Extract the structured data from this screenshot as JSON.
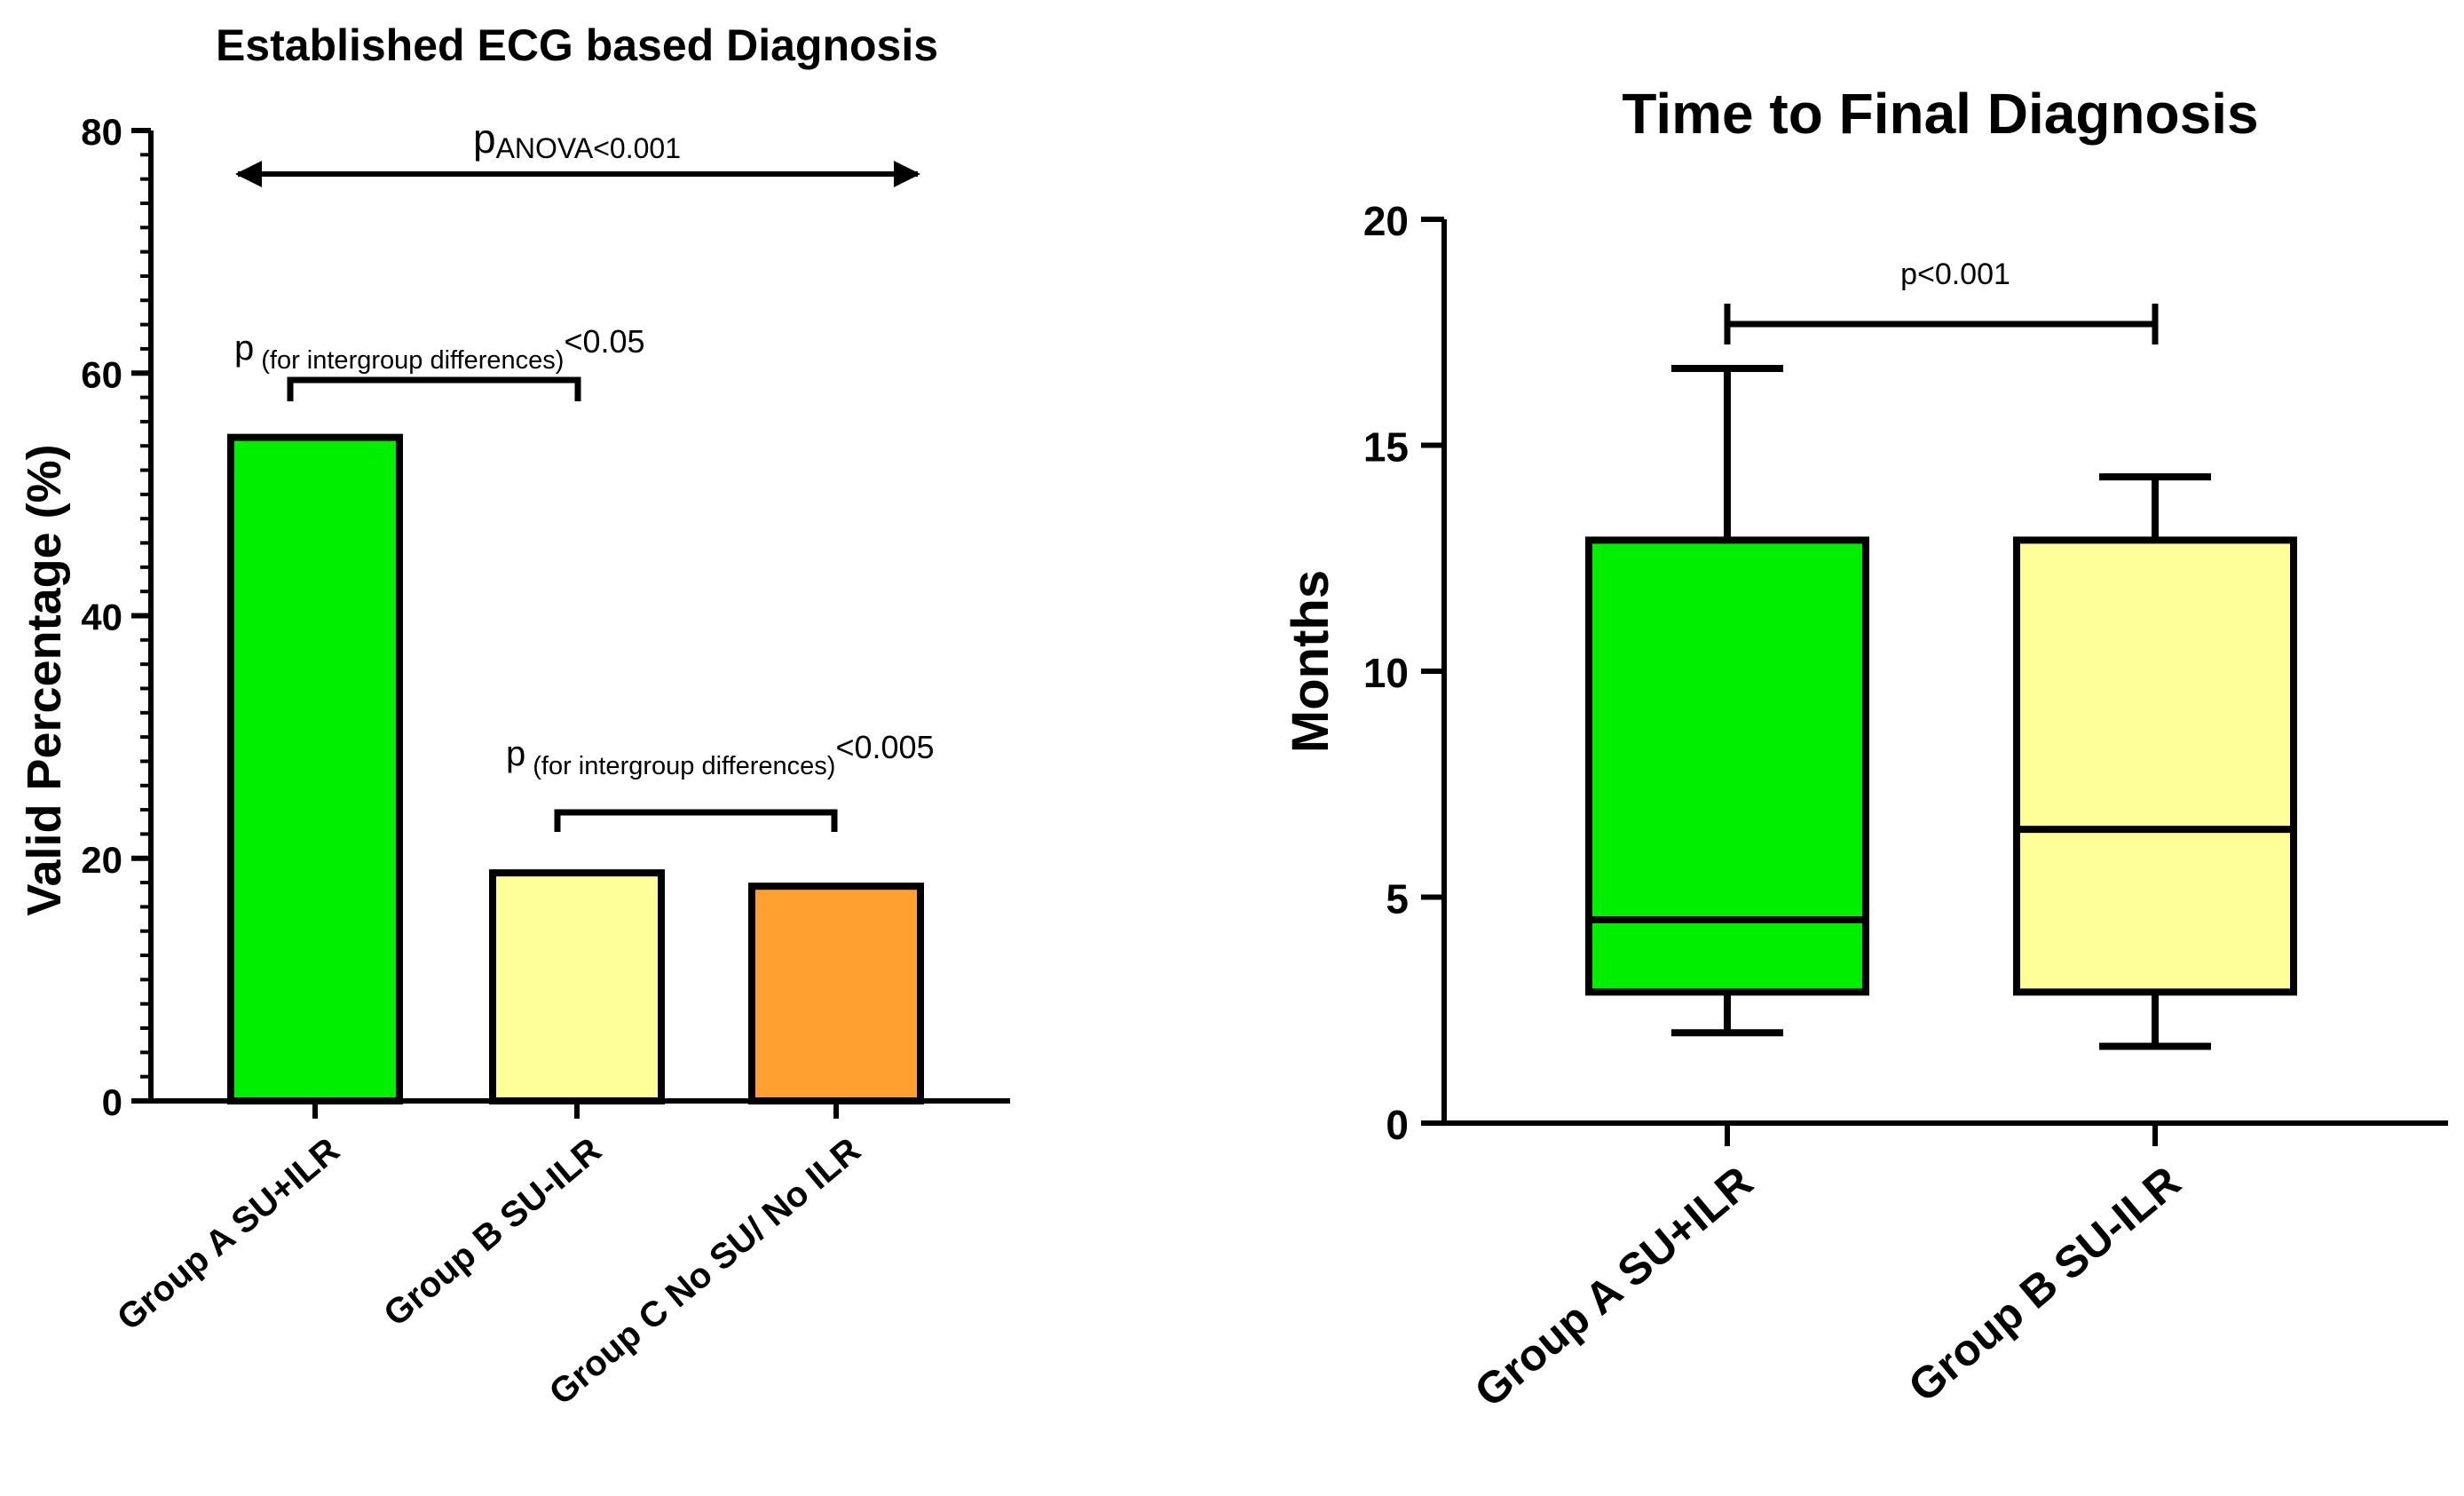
{
  "chart_data": [
    {
      "type": "bar",
      "title": "Established ECG based Diagnosis",
      "ylabel": "Valid Percentage (%)",
      "xlabel": "",
      "ylim": [
        0,
        80
      ],
      "yticks": [
        0,
        20,
        40,
        60,
        80
      ],
      "grid": false,
      "categories": [
        "Group A SU+ILR",
        "Group B SU-ILR",
        "Group C No SU/ No ILR"
      ],
      "values": [
        54.7,
        18.8,
        17.7
      ],
      "colors": [
        "#00ee00",
        "#ffff99",
        "#ffa030"
      ],
      "annotations": {
        "anova": {
          "p": "p",
          "sub": "ANOVA",
          "rest": "<0.001"
        },
        "ab": {
          "p": "p",
          "sub": "(for intergroup differences)",
          "rest": "<0.05",
          "from": 0,
          "to": 1
        },
        "bc": {
          "p": "p",
          "sub": "(for intergroup differences)",
          "rest": "<0.005",
          "from": 1,
          "to": 2
        }
      }
    },
    {
      "type": "box",
      "title": "Time to Final Diagnosis",
      "ylabel": "Months",
      "xlabel": "",
      "ylim": [
        0,
        20
      ],
      "yticks": [
        0,
        5,
        10,
        15,
        20
      ],
      "grid": false,
      "categories": [
        "Group A SU+ILR",
        "Group B SU-ILR"
      ],
      "boxes": [
        {
          "min": 2.0,
          "q1": 2.9,
          "median": 4.5,
          "q3": 12.9,
          "max": 16.7,
          "color": "#00ee00"
        },
        {
          "min": 1.7,
          "q1": 2.9,
          "median": 6.5,
          "q3": 12.9,
          "max": 14.3,
          "color": "#ffff99"
        }
      ],
      "annotations": {
        "pvalue": {
          "text": "p<0.001",
          "from": 0,
          "to": 1
        }
      }
    }
  ]
}
